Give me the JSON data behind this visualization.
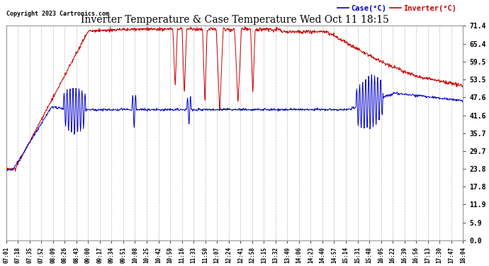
{
  "title": "Inverter Temperature & Case Temperature Wed Oct 11 18:15",
  "copyright": "Copyright 2023 Cartronics.com",
  "legend_case": "Case(°C)",
  "legend_inverter": "Inverter(°C)",
  "bg_color": "#ffffff",
  "plot_bg_color": "#ffffff",
  "grid_color": "#cccccc",
  "title_color": "#000000",
  "copyright_color": "#000000",
  "case_color": "#0000cc",
  "inverter_color": "#cc0000",
  "ymin": 0.0,
  "ymax": 71.4,
  "yticks": [
    0.0,
    5.9,
    11.9,
    17.8,
    23.8,
    29.7,
    35.7,
    41.6,
    47.6,
    53.5,
    59.5,
    65.4,
    71.4
  ],
  "xtick_labels": [
    "07:01",
    "07:18",
    "07:35",
    "07:52",
    "08:09",
    "08:26",
    "08:43",
    "09:00",
    "09:17",
    "09:34",
    "09:51",
    "10:08",
    "10:25",
    "10:42",
    "10:59",
    "11:16",
    "11:33",
    "11:50",
    "12:07",
    "12:24",
    "12:41",
    "12:58",
    "13:15",
    "13:32",
    "13:49",
    "14:06",
    "14:23",
    "14:40",
    "14:57",
    "15:14",
    "15:31",
    "15:48",
    "16:05",
    "16:22",
    "16:39",
    "16:56",
    "17:13",
    "17:30",
    "17:47",
    "18:04"
  ],
  "figsize": [
    6.9,
    3.75
  ],
  "dpi": 100
}
